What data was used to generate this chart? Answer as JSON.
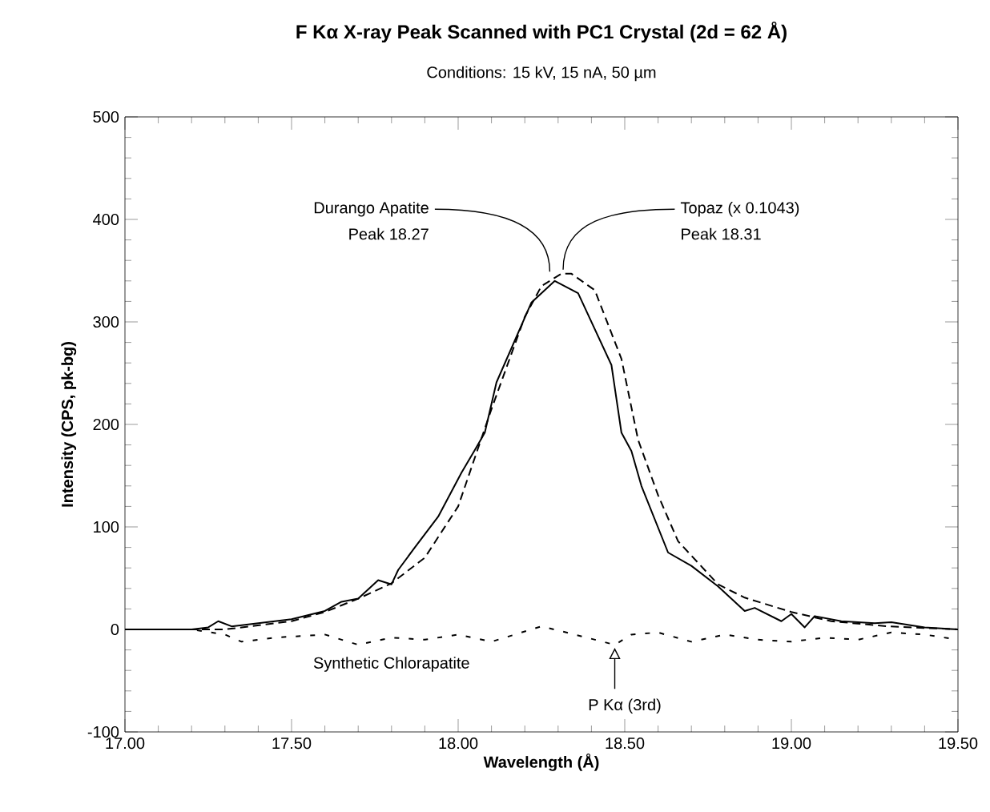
{
  "chart_data": {
    "type": "line",
    "title": "F Kα X-ray Peak Scanned with PC1 Crystal (2d = 62 Å)",
    "subtitle": "Conditions: 15 kV, 15 nA, 50 µm",
    "xlabel": "Wavelength (Å)",
    "ylabel": "Intensity (CPS, pk-bg)",
    "xlim": [
      17.0,
      19.5
    ],
    "xticks": [
      {
        "value": 17.0,
        "label": "17.00"
      },
      {
        "value": 17.5,
        "label": "17.50"
      },
      {
        "value": 18.0,
        "label": "18.00"
      },
      {
        "value": 18.5,
        "label": "18.50"
      },
      {
        "value": 19.0,
        "label": "19.00"
      },
      {
        "value": 19.5,
        "label": "19.50"
      }
    ],
    "ylim": [
      -100,
      500
    ],
    "yticks": [
      -100,
      0,
      100,
      200,
      300,
      400,
      500
    ],
    "grid": false,
    "legend": false,
    "marker": "none",
    "series": [
      {
        "name": "Durango Apatite",
        "color": "#000000",
        "line_style": "solid",
        "x": [
          17.0,
          17.1,
          17.2,
          17.25,
          17.28,
          17.32,
          17.4,
          17.5,
          17.6,
          17.65,
          17.7,
          17.76,
          17.8,
          17.82,
          17.87,
          17.94,
          18.01,
          18.05,
          18.08,
          18.115,
          18.22,
          18.29,
          18.36,
          18.46,
          18.49,
          18.52,
          18.55,
          18.63,
          18.7,
          18.78,
          18.86,
          18.89,
          18.97,
          19.0,
          19.04,
          19.07,
          19.15,
          19.25,
          19.3,
          19.4,
          19.5
        ],
        "values": [
          0,
          0,
          0,
          2,
          8,
          3,
          6,
          10,
          18,
          27,
          30,
          48,
          44,
          58,
          80,
          110,
          153,
          175,
          192,
          241,
          319,
          340,
          328,
          258,
          192,
          174,
          140,
          75,
          62,
          42,
          18,
          21,
          8,
          15,
          2,
          13,
          8,
          6,
          7,
          2,
          0
        ]
      },
      {
        "name": "Topaz (x 0.1043)",
        "color": "#000000",
        "line_style": "dashed",
        "x": [
          17.0,
          17.3,
          17.4,
          17.5,
          17.6,
          17.7,
          17.8,
          17.9,
          18.0,
          18.1,
          18.2,
          18.25,
          18.31,
          18.34,
          18.41,
          18.49,
          18.54,
          18.6,
          18.66,
          18.78,
          18.86,
          19.0,
          19.12,
          19.29,
          19.5
        ],
        "values": [
          0,
          0,
          4,
          8,
          17,
          30,
          45,
          70,
          120,
          215,
          305,
          335,
          347,
          347,
          331,
          264,
          185,
          131,
          86,
          44,
          31,
          17,
          8,
          3,
          0
        ]
      },
      {
        "name": "Synthetic Chlorapatite",
        "color": "#000000",
        "line_style": "dotted",
        "x": [
          17.0,
          17.2,
          17.3,
          17.35,
          17.45,
          17.6,
          17.7,
          17.8,
          17.9,
          18.0,
          18.1,
          18.2,
          18.25,
          18.35,
          18.47,
          18.52,
          18.6,
          18.7,
          18.8,
          18.9,
          19.0,
          19.1,
          19.2,
          19.3,
          19.4,
          19.5
        ],
        "values": [
          0,
          0,
          -5,
          -12,
          -8,
          -5,
          -15,
          -8,
          -10,
          -5,
          -12,
          -2,
          3,
          -5,
          -15,
          -5,
          -3,
          -12,
          -5,
          -10,
          -12,
          -8,
          -10,
          -3,
          -5,
          -10
        ]
      }
    ],
    "annotations": [
      {
        "text": "Peak 18.27",
        "x": 18.27,
        "y": 342
      },
      {
        "text": "Peak 18.31",
        "x": 18.31,
        "y": 348
      },
      {
        "text": "P Kα (3rd)",
        "x": 18.47,
        "y": -15
      }
    ]
  }
}
